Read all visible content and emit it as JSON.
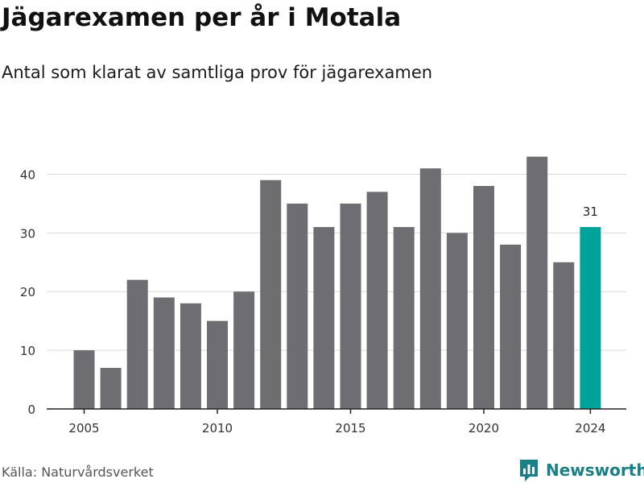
{
  "title": "Jägarexamen per år i Motala",
  "subtitle": "Antal som klarat av samtliga prov för jägarexamen",
  "source": "Källa: Naturvårdsverket",
  "brand": {
    "name": "Newsworthy",
    "icon": "bar-chart-logo-icon"
  },
  "colors": {
    "bar": "#6e6d72",
    "highlight": "#00a39a",
    "grid": "#d9d9d9",
    "axis": "#222222",
    "brand": "#1a7f86"
  },
  "chart_data": {
    "type": "bar",
    "title": "Jägarexamen per år i Motala",
    "subtitle": "Antal som klarat av samtliga prov för jägarexamen",
    "xlabel": "",
    "ylabel": "",
    "categories": [
      2005,
      2006,
      2007,
      2008,
      2009,
      2010,
      2011,
      2012,
      2013,
      2014,
      2015,
      2016,
      2017,
      2018,
      2019,
      2020,
      2021,
      2022,
      2023,
      2024
    ],
    "values": [
      10,
      7,
      22,
      19,
      18,
      15,
      20,
      39,
      35,
      31,
      35,
      37,
      31,
      41,
      30,
      38,
      28,
      43,
      25,
      31
    ],
    "highlight_category": 2024,
    "highlight_label": "31",
    "ylim": [
      0,
      45
    ],
    "yticks": [
      0,
      10,
      20,
      30,
      40
    ],
    "xticks": [
      2005,
      2010,
      2015,
      2020,
      2024
    ],
    "grid": true,
    "legend": "none"
  }
}
